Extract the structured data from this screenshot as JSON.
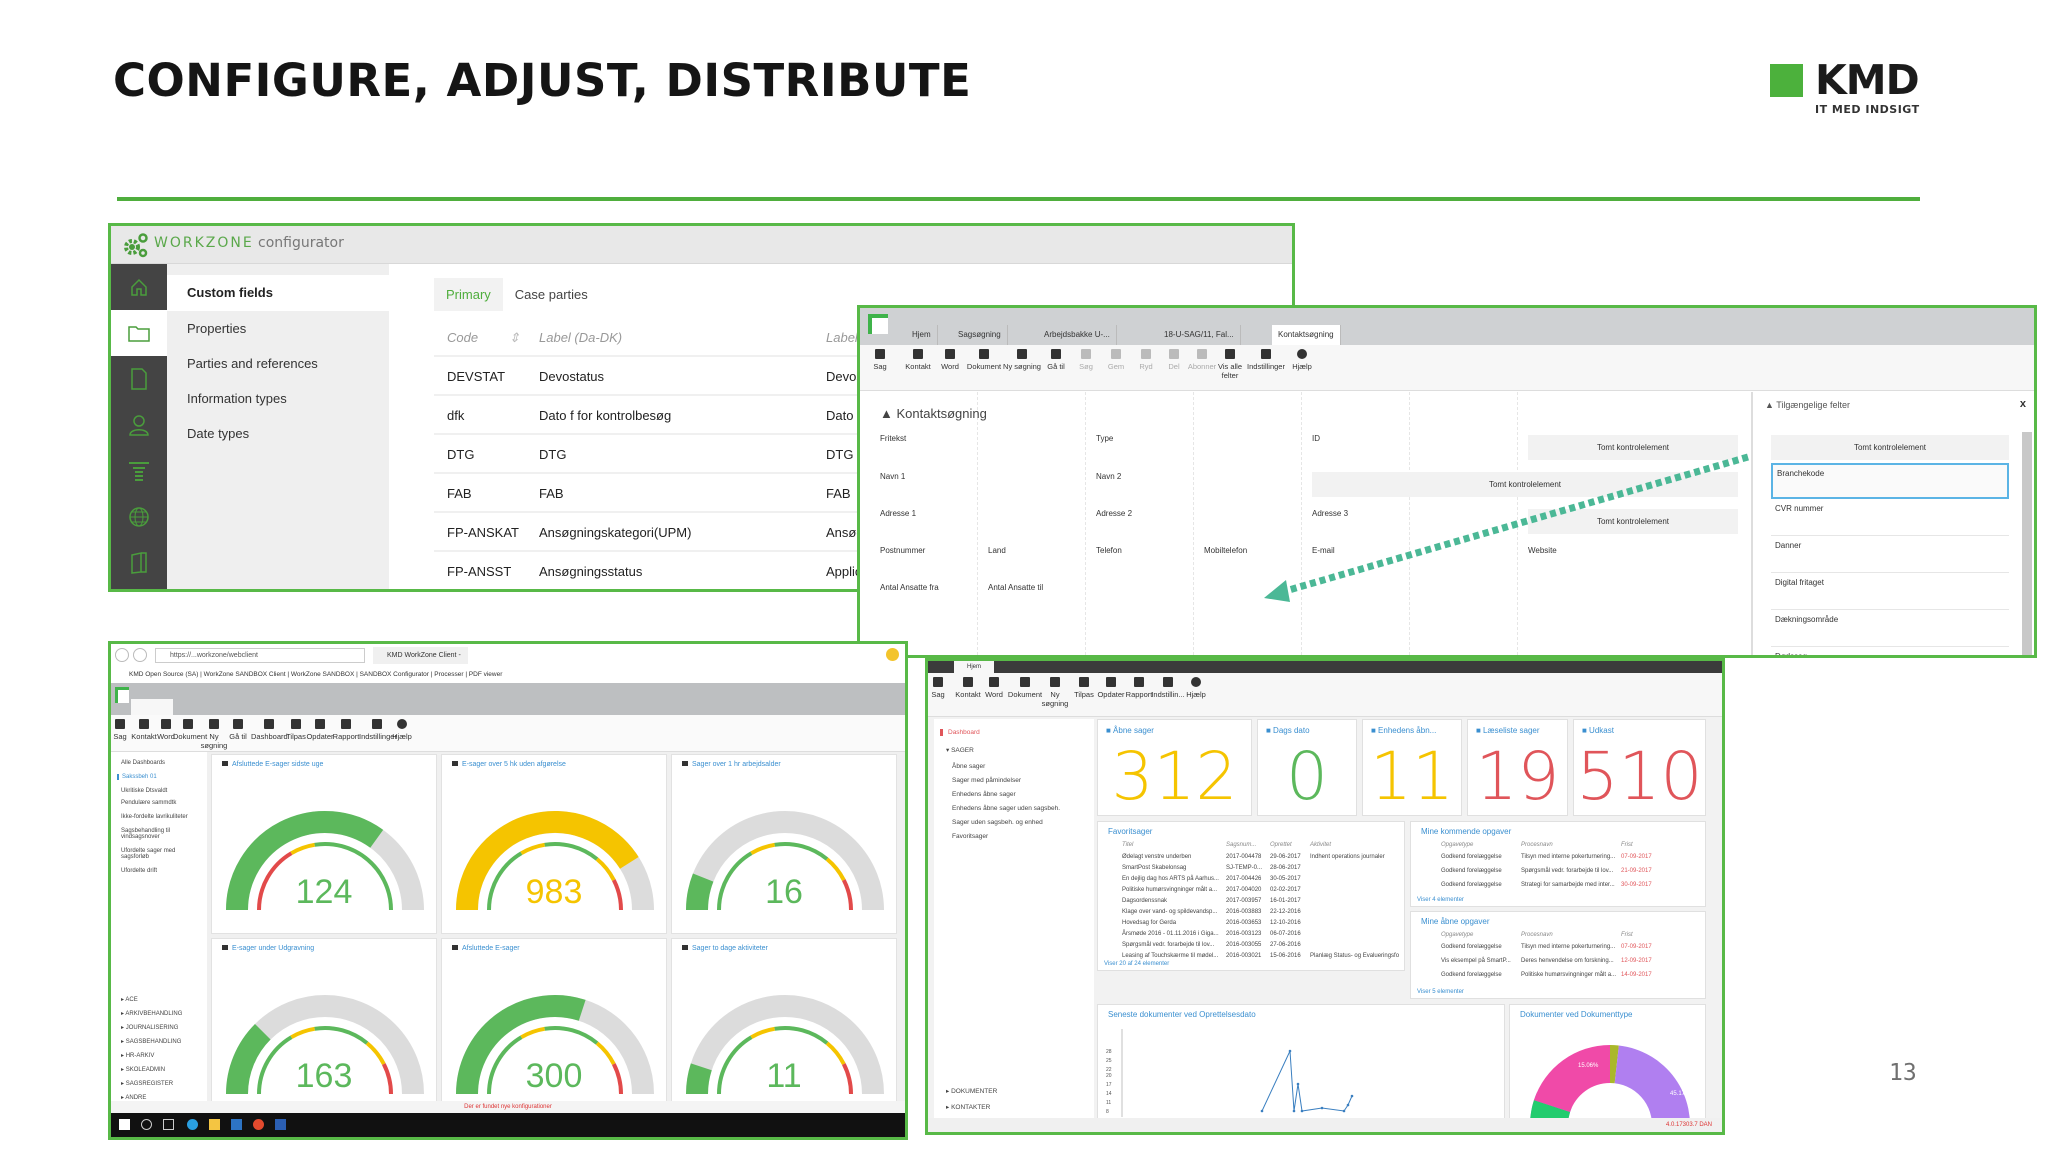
{
  "slide": {
    "title": "CONFIGURE, ADJUST, DISTRIBUTE",
    "page_number": "13",
    "accent_color": "#4fae3d",
    "logo": {
      "name": "KMD",
      "tagline": "IT MED INDSIGT"
    }
  },
  "configurator": {
    "brand": "WORKZONE",
    "brand_suffix": "configurator",
    "rail_icons": [
      "home-icon",
      "folder-icon",
      "document-icon",
      "user-icon",
      "filter-icon",
      "globe-icon",
      "book-icon"
    ],
    "menu": [
      "Custom fields",
      "Properties",
      "Parties and references",
      "Information types",
      "Date types"
    ],
    "active_menu": "Custom fields",
    "tabs": [
      "Primary",
      "Case parties"
    ],
    "active_tab": "Primary",
    "columns": [
      "Code",
      "Label (Da-DK)",
      "Label (En-GB)"
    ],
    "rows": [
      [
        "DEVSTAT",
        "Devostatus",
        "Devostatus"
      ],
      [
        "dfk",
        "Dato f for kontrolbesøg",
        "Dato f for kont"
      ],
      [
        "DTG",
        "DTG",
        "DTG"
      ],
      [
        "FAB",
        "FAB",
        "FAB"
      ],
      [
        "FP-ANSKAT",
        "Ansøgningskategori(UPM)",
        "Ansøgningskat"
      ],
      [
        "FP-ANSST",
        "Ansøgningsstatus",
        "Application sta"
      ]
    ]
  },
  "kontakt_window": {
    "tabs": [
      "Hjem",
      "Sagsøgning",
      "Arbejdsbakke U-...",
      "18-U-SAG/11, Fal...",
      "Kontaktsøgning"
    ],
    "active_tab": "Kontaktsøgning",
    "toolbar": [
      "Sag",
      "Kontakt",
      "Word",
      "Dokument",
      "Ny søgning",
      "Gå til",
      "Søg",
      "Gem",
      "Ryd",
      "Del",
      "Abonner",
      "Vis alle felter",
      "Indstillinger",
      "Hjælp"
    ],
    "heading": "Kontaktsøgning",
    "fields": [
      "Fritekst",
      "Type",
      "ID",
      "Navn 1",
      "Navn 2",
      "Adresse 1",
      "Adresse 2",
      "Adresse 3",
      "Postnummer",
      "Land",
      "Telefon",
      "Mobiltelefon",
      "E-mail",
      "Website",
      "Antal Ansatte fra",
      "Antal Ansatte til"
    ],
    "empty_control": "Tomt kontrolelement",
    "side_panel": {
      "title": "Tilgængelige felter",
      "close": "x",
      "empty_control": "Tomt kontrolelement",
      "items": [
        "Branchekode",
        "CVR nummer",
        "Danner",
        "Digital fritaget",
        "Dækningsområde",
        "Dødssag"
      ],
      "highlighted": "Branchekode"
    }
  },
  "gauges_window": {
    "address": "https://...workzone/webclient",
    "tab": "KMD WorkZone Client - SA",
    "favorites": "KMD Open Source (SA) | WorkZone SANDBOX Client | WorkZone SANDBOX | SANDBOX Configurator | Processer | PDF viewer",
    "toolbar": [
      "Sag",
      "Kontakt",
      "Word",
      "Dokument",
      "Ny søgning",
      "Gå til",
      "Dashboard",
      "Tilpas",
      "Opdater",
      "Rapport",
      "Indstillinger",
      "Hjælp"
    ],
    "nav_top": [
      "Alle Dashboards",
      "Sakssbeh 01",
      "Ukritiske Dtsvaldt",
      "Pendulære sammdtk",
      "Ikke-fordelte lavrikuliteter",
      "Sagsbehandling til vindsagsnover",
      "Ufordelte sager med sagsforløb",
      "Ufordelte drift"
    ],
    "nav_bottom": [
      "ACE",
      "ARKIVBEHANDLING",
      "JOURNALISERING",
      "SAGSBEHANDLING",
      "HR-ARKIV",
      "SKOLEADMIN",
      "SAGSREGISTER",
      "ANDRE"
    ],
    "gauges": [
      {
        "title": "Afsluttede E-sager sidste uge",
        "value": "124",
        "fill": 0.7,
        "color": "#5cb85c"
      },
      {
        "title": "E-sager over 5 hk uden afgørelse",
        "value": "983",
        "fill": 0.82,
        "color": "#f5c400"
      },
      {
        "title": "Sager over 1 hr arbejdsalder",
        "value": "16",
        "fill": 0.12,
        "color": "#5cb85c"
      },
      {
        "title": "E-sager under Udgravning",
        "value": "163",
        "fill": 0.25,
        "color": "#5cb85c"
      },
      {
        "title": "Afsluttede E-sager",
        "value": "300",
        "fill": 0.6,
        "color": "#5cb85c"
      },
      {
        "title": "Sager to dage aktiviteter",
        "value": "11",
        "fill": 0.1,
        "color": "#5cb85c"
      }
    ],
    "status_message": "Der er fundet nye konfigurationer",
    "status_right": "Zoom 100%  DAN"
  },
  "dashboard_window": {
    "top_tab": "Hjem",
    "toolbar": [
      "Sag",
      "Kontakt",
      "Word",
      "Dokument",
      "Ny søgning",
      "Tilpas",
      "Opdater",
      "Rapport",
      "Indstillin...",
      "Hjælp"
    ],
    "toolbar_groups": [
      "Opret ny",
      "Søg",
      "Dashboard",
      "Administrer indstilling...",
      "Hjælp"
    ],
    "nav": {
      "active": "Dashboard",
      "section": "SAGER",
      "items": [
        "Åbne sager",
        "Sager med påmindelser",
        "Enhedens åbne sager",
        "Enhedens åbne sager uden sagsbeh.",
        "Sager uden sagsbeh. og enhed",
        "Favoritsager"
      ],
      "collapsed": [
        "DOKUMENTER",
        "KONTAKTER",
        "ANDRE"
      ]
    },
    "kpis": [
      {
        "title": "Åbne sager",
        "value": "312",
        "color": "#f5c400"
      },
      {
        "title": "Dags dato",
        "value": "0",
        "color": "#5cb85c"
      },
      {
        "title": "Enhedens åbn...",
        "value": "11",
        "color": "#f5c400"
      },
      {
        "title": "Læseliste sager",
        "value": "19",
        "color": "#e0555a"
      },
      {
        "title": "Udkast",
        "value": "510",
        "color": "#e0555a"
      }
    ],
    "favorites": {
      "title": "Favoritsager",
      "columns": [
        "Titel",
        "Sagsnum...",
        "Oprettet",
        "Aktivitet"
      ],
      "rows": [
        [
          "Ødelagt venstre underben",
          "2017-004478",
          "29-06-2017",
          "Indhent operations journaler"
        ],
        [
          "SmartPost Skabelonsag",
          "SJ-TEMP-0...",
          "28-06-2017",
          ""
        ],
        [
          "En dejlig dag hos ARTS på Aarhus...",
          "2017-004426",
          "30-05-2017",
          ""
        ],
        [
          "Politiske humørsvingninger målt a...",
          "2017-004020",
          "02-02-2017",
          ""
        ],
        [
          "Dagsordenssnak",
          "2017-003957",
          "16-01-2017",
          ""
        ],
        [
          "Klage over vand- og spildevandsp...",
          "2016-003883",
          "22-12-2016",
          ""
        ],
        [
          "Hovedsag for Gerda",
          "2016-003653",
          "12-10-2016",
          ""
        ],
        [
          "Årsmøde 2016 - 01.11.2016 i Giga...",
          "2016-003123",
          "06-07-2016",
          ""
        ],
        [
          "Spørgsmål vedr. forarbejde til lov...",
          "2016-003055",
          "27-06-2016",
          ""
        ],
        [
          "Leasing af Touchskærme til mødel...",
          "2016-003021",
          "15-06-2016",
          "Planlæg Status- og Evalueringsfo"
        ]
      ],
      "footer": "Viser 20 af 24 elementer"
    },
    "upcoming_tasks": {
      "title": "Mine kommende opgaver",
      "columns": [
        "Opgavetype",
        "Procesnavn",
        "Frist"
      ],
      "rows": [
        [
          "Godkend forelæggelse",
          "Tilsyn med interne pokerturnering...",
          "07-09-2017"
        ],
        [
          "Godkend forelæggelse",
          "Spørgsmål vedr. forarbejde til lov...",
          "21-09-2017"
        ],
        [
          "Godkend forelæggelse",
          "Strategi for samarbejde med inter...",
          "30-09-2017"
        ]
      ],
      "footer": "Viser 4 elementer"
    },
    "open_tasks": {
      "title": "Mine åbne opgaver",
      "columns": [
        "Opgavetype",
        "Procesnavn",
        "Frist"
      ],
      "rows": [
        [
          "Godkend forelæggelse",
          "Tilsyn med interne pokerturnering...",
          "07-09-2017"
        ],
        [
          "Vis eksempel på SmartP...",
          "Deres henvendelse om forskning...",
          "12-09-2017"
        ],
        [
          "Godkend forelæggelse",
          "Politiske humørsvingninger målt a...",
          "14-09-2017"
        ]
      ],
      "footer": "Viser 5 elementer"
    },
    "line_chart_title": "Seneste dokumenter ved Oprettelsesdato",
    "donut_title": "Dokumenter ved Dokumenttype",
    "status": "4.0.17303.7  DAN"
  },
  "chart_data": [
    {
      "type": "line",
      "title": "Seneste dokumenter ved Oprettelsesdato",
      "y_ticks": [
        8,
        11,
        14,
        17,
        20,
        22,
        25,
        28
      ],
      "series": [
        {
          "name": "Dokumenter",
          "values": [
            8,
            28,
            8,
            17,
            8,
            9,
            8,
            10,
            13
          ]
        }
      ]
    },
    {
      "type": "pie",
      "title": "Dokumenter ved Dokumenttype",
      "labels": [
        "Purple",
        "Green",
        "Pink",
        "Olive"
      ],
      "values": [
        45.17,
        17.18,
        15.06,
        2.0
      ],
      "colors": [
        "#b07ff0",
        "#22cc6e",
        "#f04aa8",
        "#aab82a"
      ]
    }
  ]
}
